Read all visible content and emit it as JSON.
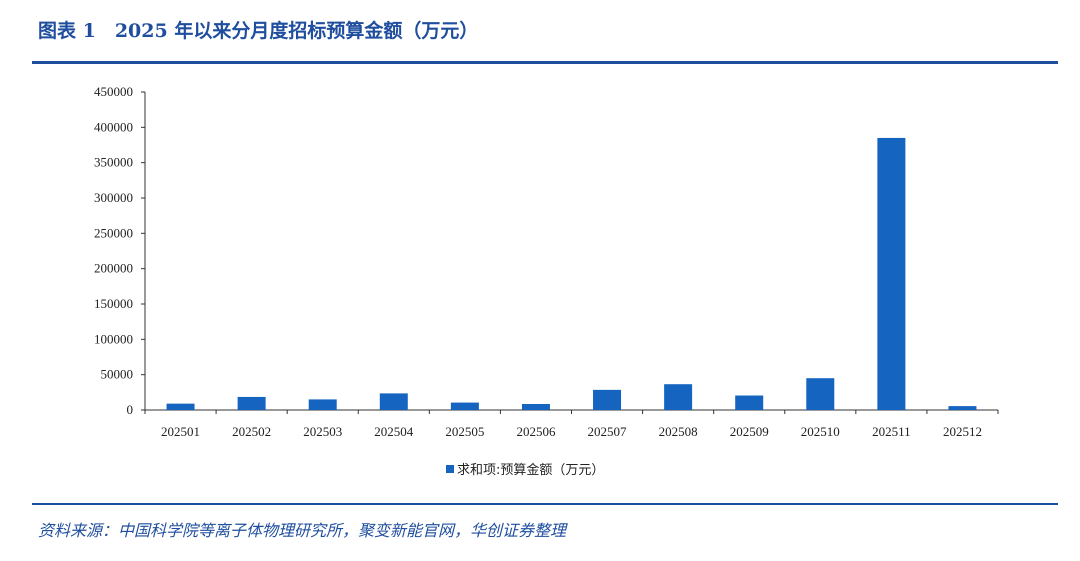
{
  "figure": {
    "title": "图表 1　2025 年以来分月度招标预算金额（万元）",
    "source": "资料来源：中国科学院等离子体物理研究所，聚变新能官网，华创证券整理"
  },
  "colors": {
    "bar": "#1565c0",
    "rule": "#1f4e9e",
    "title": "#1f4e9e"
  },
  "chart_data": {
    "type": "bar",
    "title": "",
    "xlabel": "",
    "ylabel": "",
    "ylim": [
      0,
      450000
    ],
    "yticks": [
      0,
      50000,
      100000,
      150000,
      200000,
      250000,
      300000,
      350000,
      400000,
      450000
    ],
    "grid": false,
    "legend_position": "bottom",
    "categories": [
      "202501",
      "202502",
      "202503",
      "202504",
      "202505",
      "202506",
      "202507",
      "202508",
      "202509",
      "202510",
      "202511",
      "202512"
    ],
    "series": [
      {
        "name": "求和项:预算金额（万元）",
        "values": [
          9000,
          18500,
          15000,
          23500,
          10500,
          8500,
          28500,
          36500,
          20500,
          45000,
          385000,
          5500
        ]
      }
    ]
  }
}
